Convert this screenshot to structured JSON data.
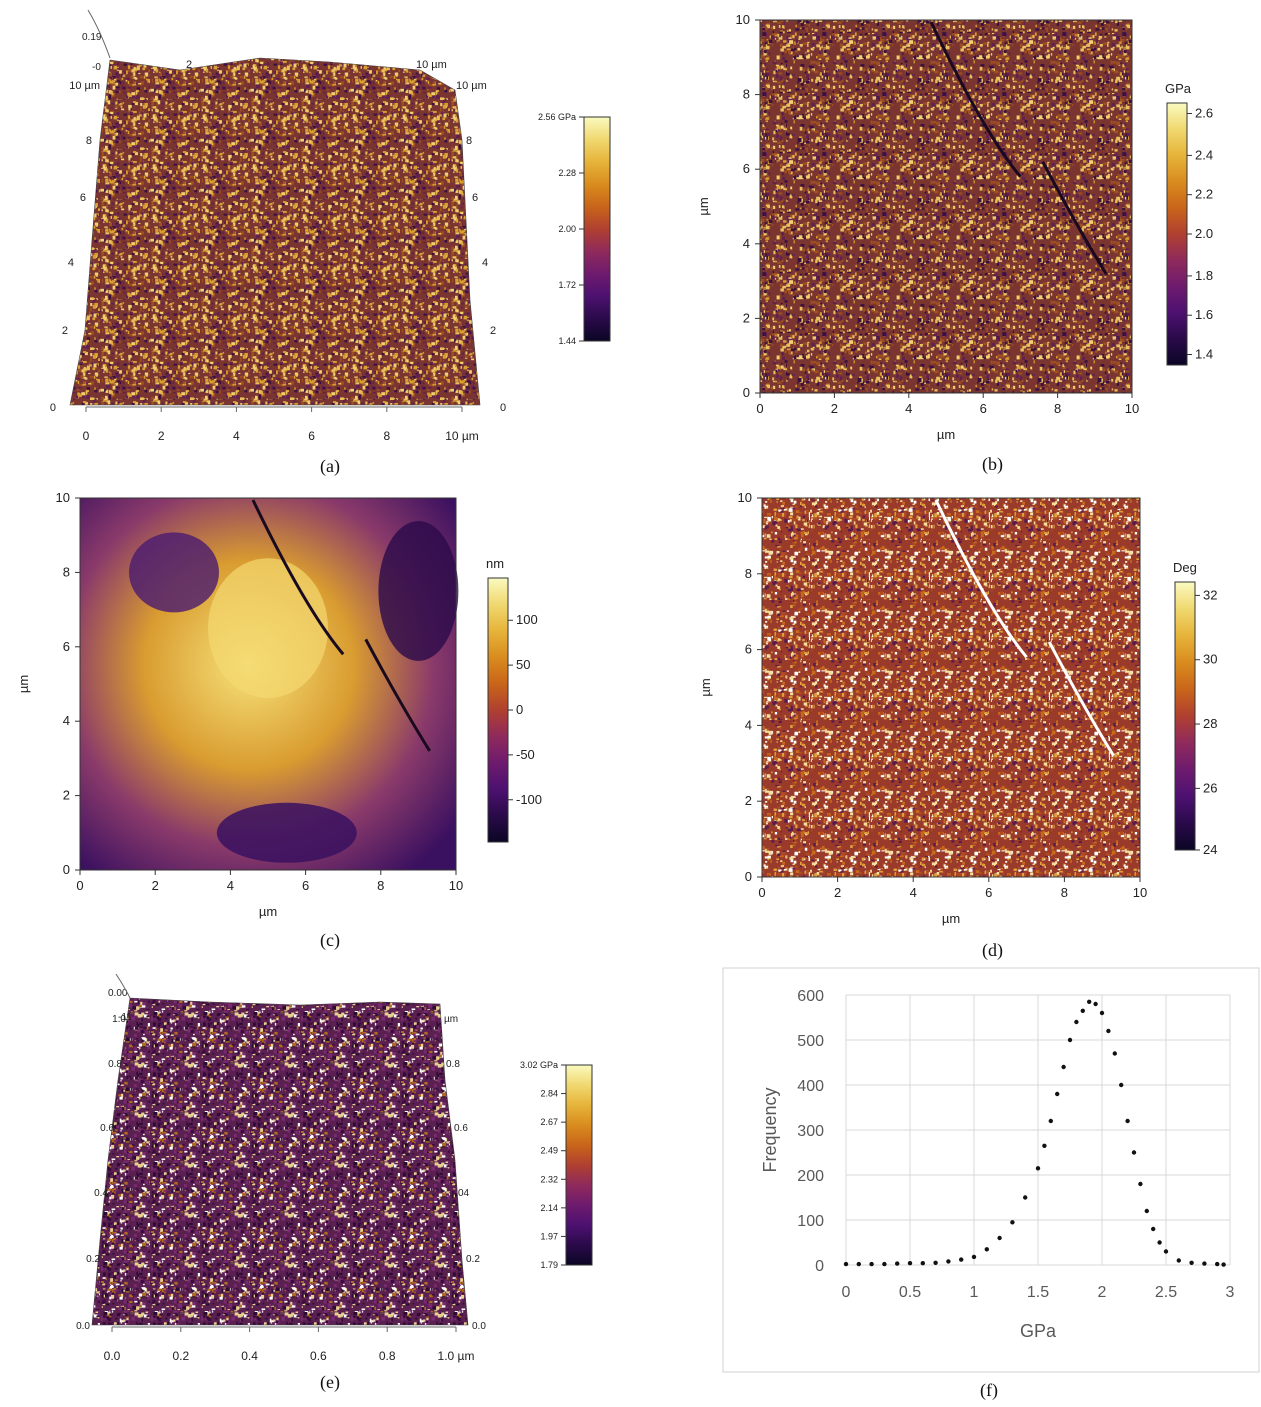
{
  "panels": {
    "a": {
      "label": "(a)",
      "type": "heatmap-3d",
      "colorbar_ticks": [
        "2.56 GPa",
        "2.28",
        "2.00",
        "1.72",
        "1.44"
      ],
      "x_ticks": [
        "0",
        "2",
        "4",
        "6",
        "8",
        "10 µm"
      ],
      "left_ticks": [
        "0",
        "2",
        "4",
        "6",
        "8",
        "10 µm"
      ],
      "right_ticks": [
        "0",
        "2",
        "4",
        "6",
        "8",
        "10 µm"
      ],
      "corner_labels": [
        "0.19",
        "-0",
        "2",
        "10 µm"
      ]
    },
    "b": {
      "label": "(b)",
      "type": "heatmap",
      "xlabel": "µm",
      "ylabel": "µm",
      "x_ticks": [
        "0",
        "2",
        "4",
        "6",
        "8",
        "10"
      ],
      "y_ticks": [
        "0",
        "2",
        "4",
        "6",
        "8",
        "10"
      ],
      "colorbar_unit": "GPa",
      "colorbar_ticks": [
        "2.6",
        "2.4",
        "2.2",
        "2.0",
        "1.8",
        "1.6",
        "1.4"
      ]
    },
    "c": {
      "label": "(c)",
      "type": "heatmap",
      "xlabel": "µm",
      "ylabel": "µm",
      "x_ticks": [
        "0",
        "2",
        "4",
        "6",
        "8",
        "10"
      ],
      "y_ticks": [
        "0",
        "2",
        "4",
        "6",
        "8",
        "10"
      ],
      "colorbar_unit": "nm",
      "colorbar_ticks": [
        "100",
        "50",
        "0",
        "-50",
        "-100"
      ]
    },
    "d": {
      "label": "(d)",
      "type": "heatmap",
      "xlabel": "µm",
      "ylabel": "µm",
      "x_ticks": [
        "0",
        "2",
        "4",
        "6",
        "8",
        "10"
      ],
      "y_ticks": [
        "0",
        "2",
        "4",
        "6",
        "8",
        "10"
      ],
      "colorbar_unit": "Deg",
      "colorbar_ticks": [
        "32",
        "30",
        "28",
        "26",
        "24"
      ]
    },
    "e": {
      "label": "(e)",
      "type": "heatmap-3d",
      "colorbar_ticks": [
        "3.02 GPa",
        "2.84",
        "2.67",
        "2.49",
        "2.32",
        "2.14",
        "1.97",
        "1.79"
      ],
      "x_ticks": [
        "0.0",
        "0.2",
        "0.4",
        "0.6",
        "0.8",
        "1.0 µm"
      ],
      "left_ticks": [
        "0.0",
        "0.2",
        "0.4",
        "0.6",
        "0.8",
        "1.0"
      ],
      "right_ticks": [
        "0.0",
        "0.2",
        "04",
        "0.6",
        "0.8",
        "µm"
      ],
      "corner_labels": [
        "0.00",
        "-11"
      ]
    },
    "f": {
      "label": "(f)",
      "type": "scatter",
      "xlabel": "GPa",
      "ylabel": "Frequency",
      "x_ticks": [
        "0",
        "0.5",
        "1",
        "1.5",
        "2",
        "2.5",
        "3"
      ],
      "y_ticks": [
        "0",
        "100",
        "200",
        "300",
        "400",
        "500",
        "600"
      ]
    }
  },
  "chart_data": {
    "type": "scatter",
    "xlabel": "GPa",
    "ylabel": "Frequency",
    "xlim": [
      0,
      3
    ],
    "ylim": [
      0,
      600
    ],
    "grid": true,
    "x": [
      0.0,
      0.1,
      0.2,
      0.3,
      0.4,
      0.5,
      0.6,
      0.7,
      0.8,
      0.9,
      1.0,
      1.1,
      1.2,
      1.3,
      1.4,
      1.5,
      1.55,
      1.6,
      1.65,
      1.7,
      1.75,
      1.8,
      1.85,
      1.9,
      1.95,
      2.0,
      2.05,
      2.1,
      2.15,
      2.2,
      2.25,
      2.3,
      2.35,
      2.4,
      2.45,
      2.5,
      2.6,
      2.7,
      2.8,
      2.9,
      2.95
    ],
    "y": [
      2,
      2,
      2,
      2,
      3,
      4,
      4,
      5,
      8,
      12,
      18,
      35,
      60,
      95,
      150,
      215,
      265,
      320,
      380,
      440,
      500,
      540,
      565,
      585,
      580,
      560,
      520,
      470,
      400,
      320,
      250,
      180,
      120,
      80,
      50,
      30,
      10,
      5,
      3,
      2,
      1
    ]
  }
}
